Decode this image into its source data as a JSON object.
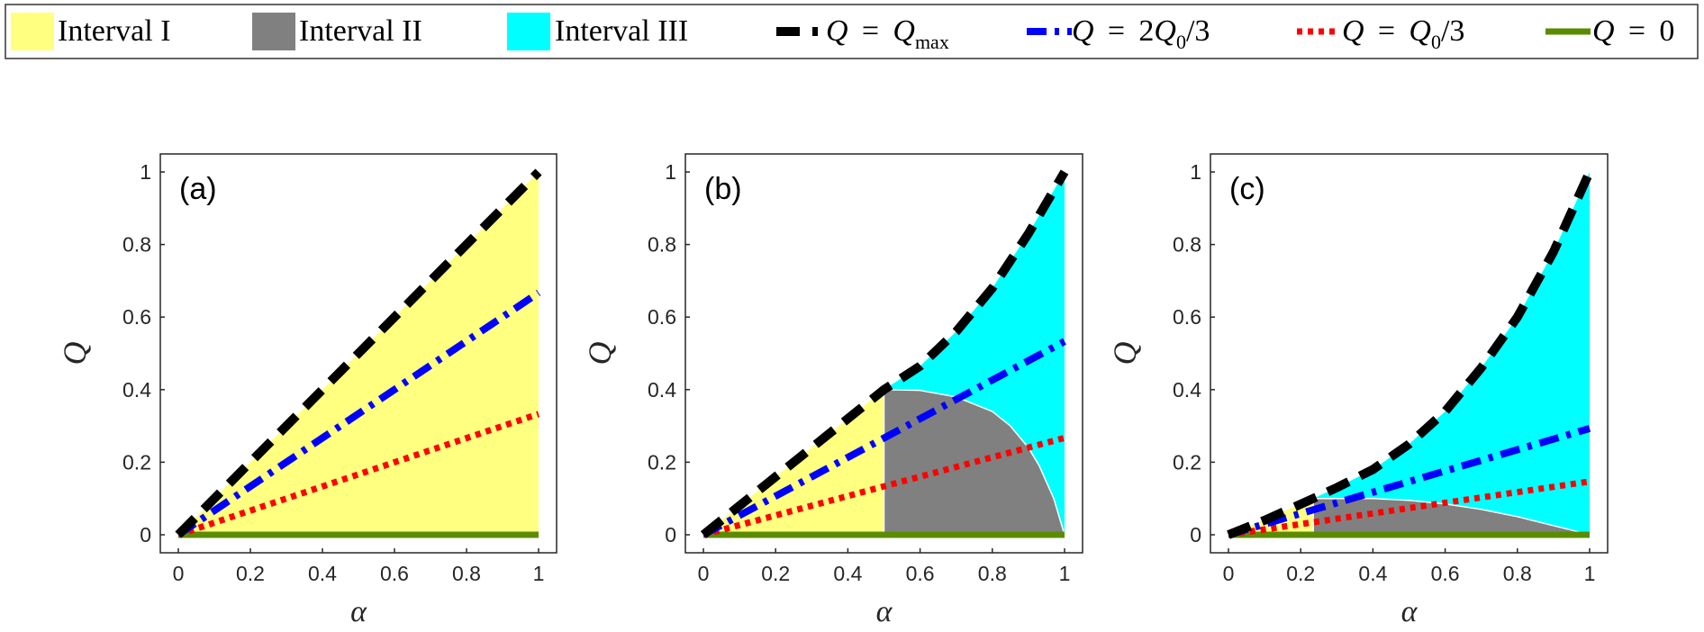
{
  "legend": {
    "placement": "top",
    "entries": [
      {
        "key": "interval_1",
        "kind": "patch",
        "label": "Interval I",
        "color": "#FFFF80"
      },
      {
        "key": "interval_2",
        "kind": "patch",
        "label": "Interval II",
        "color": "#808080"
      },
      {
        "key": "interval_3",
        "kind": "patch",
        "label": "Interval III",
        "color": "#00FFFF"
      },
      {
        "key": "q_max",
        "kind": "line",
        "label": "Q = Q_max",
        "color": "#000000",
        "style": "dashed"
      },
      {
        "key": "q_2q0_3",
        "kind": "line",
        "label": "Q = 2Q_0/3",
        "color": "#0000FF",
        "style": "dashdot"
      },
      {
        "key": "q_q0_3",
        "kind": "line",
        "label": "Q = Q_0/3",
        "color": "#FF0000",
        "style": "dotted"
      },
      {
        "key": "q_0",
        "kind": "line",
        "label": "Q = 0",
        "color": "#5B8C00",
        "style": "solid"
      }
    ]
  },
  "chart_data": [
    {
      "type": "area",
      "panel_label": "(a)",
      "xlabel": "α",
      "ylabel": "Q",
      "xlim": [
        0,
        1
      ],
      "ylim": [
        0,
        1
      ],
      "xticks": [
        "0",
        "0.2",
        "0.4",
        "0.6",
        "0.8",
        "1"
      ],
      "yticks": [
        "0",
        "0.2",
        "0.4",
        "0.6",
        "0.8",
        "1"
      ],
      "regions": [
        {
          "name": "Interval I",
          "color": "#FFFF80",
          "polygon": [
            [
              0,
              0
            ],
            [
              1,
              0
            ],
            [
              1,
              1
            ]
          ]
        }
      ],
      "series": [
        {
          "name": "Q = Q_max",
          "style": "dashed",
          "color": "#000000",
          "x": [
            0,
            1
          ],
          "y": [
            0,
            1
          ]
        },
        {
          "name": "Q = 2Q_0/3",
          "style": "dashdot",
          "color": "#0000FF",
          "x": [
            0,
            1
          ],
          "y": [
            0,
            0.667
          ]
        },
        {
          "name": "Q = Q_0/3",
          "style": "dotted",
          "color": "#FF0000",
          "x": [
            0,
            1
          ],
          "y": [
            0,
            0.333
          ]
        },
        {
          "name": "Q = 0",
          "style": "solid",
          "color": "#5B8C00",
          "x": [
            0,
            1
          ],
          "y": [
            0,
            0
          ]
        }
      ]
    },
    {
      "type": "area",
      "panel_label": "(b)",
      "xlabel": "α",
      "ylabel": "Q",
      "xlim": [
        0,
        1
      ],
      "ylim": [
        0,
        1
      ],
      "xticks": [
        "0",
        "0.2",
        "0.4",
        "0.6",
        "0.8",
        "1"
      ],
      "yticks": [
        "0",
        "0.2",
        "0.4",
        "0.6",
        "0.8",
        "1"
      ],
      "regions": [
        {
          "name": "Interval I",
          "color": "#FFFF80",
          "polygon": [
            [
              0,
              0
            ],
            [
              0.5,
              0
            ],
            [
              0.5,
              0.4
            ]
          ]
        },
        {
          "name": "Interval III",
          "color": "#00FFFF",
          "polygon": [
            [
              0.5,
              0.4
            ],
            [
              0.6,
              0.465
            ],
            [
              0.7,
              0.56
            ],
            [
              0.8,
              0.68
            ],
            [
              0.9,
              0.83
            ],
            [
              1,
              1
            ],
            [
              1,
              0
            ],
            [
              0.97,
              0.1
            ],
            [
              0.93,
              0.19
            ],
            [
              0.9,
              0.24
            ],
            [
              0.85,
              0.3
            ],
            [
              0.8,
              0.34
            ],
            [
              0.7,
              0.38
            ],
            [
              0.6,
              0.398
            ]
          ]
        },
        {
          "name": "Interval II",
          "color": "#808080",
          "polygon": [
            [
              0.5,
              0
            ],
            [
              0.5,
              0.4
            ],
            [
              0.6,
              0.398
            ],
            [
              0.7,
              0.38
            ],
            [
              0.8,
              0.34
            ],
            [
              0.85,
              0.3
            ],
            [
              0.9,
              0.24
            ],
            [
              0.93,
              0.19
            ],
            [
              0.97,
              0.1
            ],
            [
              1,
              0
            ]
          ]
        }
      ],
      "series": [
        {
          "name": "Q = Q_max",
          "style": "dashed",
          "color": "#000000",
          "x": [
            0,
            0.5,
            0.6,
            0.7,
            0.8,
            0.9,
            1
          ],
          "y": [
            0,
            0.4,
            0.465,
            0.56,
            0.68,
            0.83,
            1
          ]
        },
        {
          "name": "Q = 2Q_0/3",
          "style": "dashdot",
          "color": "#0000FF",
          "x": [
            0,
            1
          ],
          "y": [
            0,
            0.533
          ]
        },
        {
          "name": "Q = Q_0/3",
          "style": "dotted",
          "color": "#FF0000",
          "x": [
            0,
            1
          ],
          "y": [
            0,
            0.267
          ]
        },
        {
          "name": "Q = 0",
          "style": "solid",
          "color": "#5B8C00",
          "x": [
            0,
            1
          ],
          "y": [
            0,
            0
          ]
        }
      ]
    },
    {
      "type": "area",
      "panel_label": "(c)",
      "xlabel": "α",
      "ylabel": "Q",
      "xlim": [
        0,
        1
      ],
      "ylim": [
        0,
        1
      ],
      "xticks": [
        "0",
        "0.2",
        "0.4",
        "0.6",
        "0.8",
        "1"
      ],
      "yticks": [
        "0",
        "0.2",
        "0.4",
        "0.6",
        "0.8",
        "1"
      ],
      "regions": [
        {
          "name": "Interval I",
          "color": "#FFFF80",
          "polygon": [
            [
              0,
              0
            ],
            [
              0.235,
              0
            ],
            [
              0.235,
              0.1
            ]
          ]
        },
        {
          "name": "Interval III",
          "color": "#00FFFF",
          "polygon": [
            [
              0.235,
              0.1
            ],
            [
              0.3,
              0.13
            ],
            [
              0.4,
              0.18
            ],
            [
              0.5,
              0.25
            ],
            [
              0.6,
              0.34
            ],
            [
              0.7,
              0.46
            ],
            [
              0.8,
              0.6
            ],
            [
              0.9,
              0.78
            ],
            [
              1,
              1
            ],
            [
              1,
              0
            ],
            [
              0.95,
              0.013
            ],
            [
              0.9,
              0.025
            ],
            [
              0.8,
              0.05
            ],
            [
              0.7,
              0.07
            ],
            [
              0.6,
              0.085
            ],
            [
              0.5,
              0.095
            ],
            [
              0.4,
              0.1
            ]
          ]
        },
        {
          "name": "Interval II",
          "color": "#808080",
          "polygon": [
            [
              0.235,
              0
            ],
            [
              0.235,
              0.1
            ],
            [
              0.4,
              0.1
            ],
            [
              0.5,
              0.095
            ],
            [
              0.6,
              0.085
            ],
            [
              0.7,
              0.07
            ],
            [
              0.8,
              0.05
            ],
            [
              0.9,
              0.025
            ],
            [
              0.95,
              0.013
            ],
            [
              1,
              0
            ]
          ]
        }
      ],
      "series": [
        {
          "name": "Q = Q_max",
          "style": "dashed",
          "color": "#000000",
          "x": [
            0,
            0.1,
            0.235,
            0.3,
            0.4,
            0.5,
            0.6,
            0.7,
            0.8,
            0.9,
            1
          ],
          "y": [
            0,
            0.04,
            0.1,
            0.13,
            0.18,
            0.25,
            0.34,
            0.46,
            0.6,
            0.78,
            1
          ]
        },
        {
          "name": "Q = 2Q_0/3",
          "style": "dashdot",
          "color": "#0000FF",
          "x": [
            0,
            1
          ],
          "y": [
            0,
            0.293
          ]
        },
        {
          "name": "Q = Q_0/3",
          "style": "dotted",
          "color": "#FF0000",
          "x": [
            0,
            1
          ],
          "y": [
            0,
            0.147
          ]
        },
        {
          "name": "Q = 0",
          "style": "solid",
          "color": "#5B8C00",
          "x": [
            0,
            1
          ],
          "y": [
            0,
            0
          ]
        }
      ]
    }
  ]
}
